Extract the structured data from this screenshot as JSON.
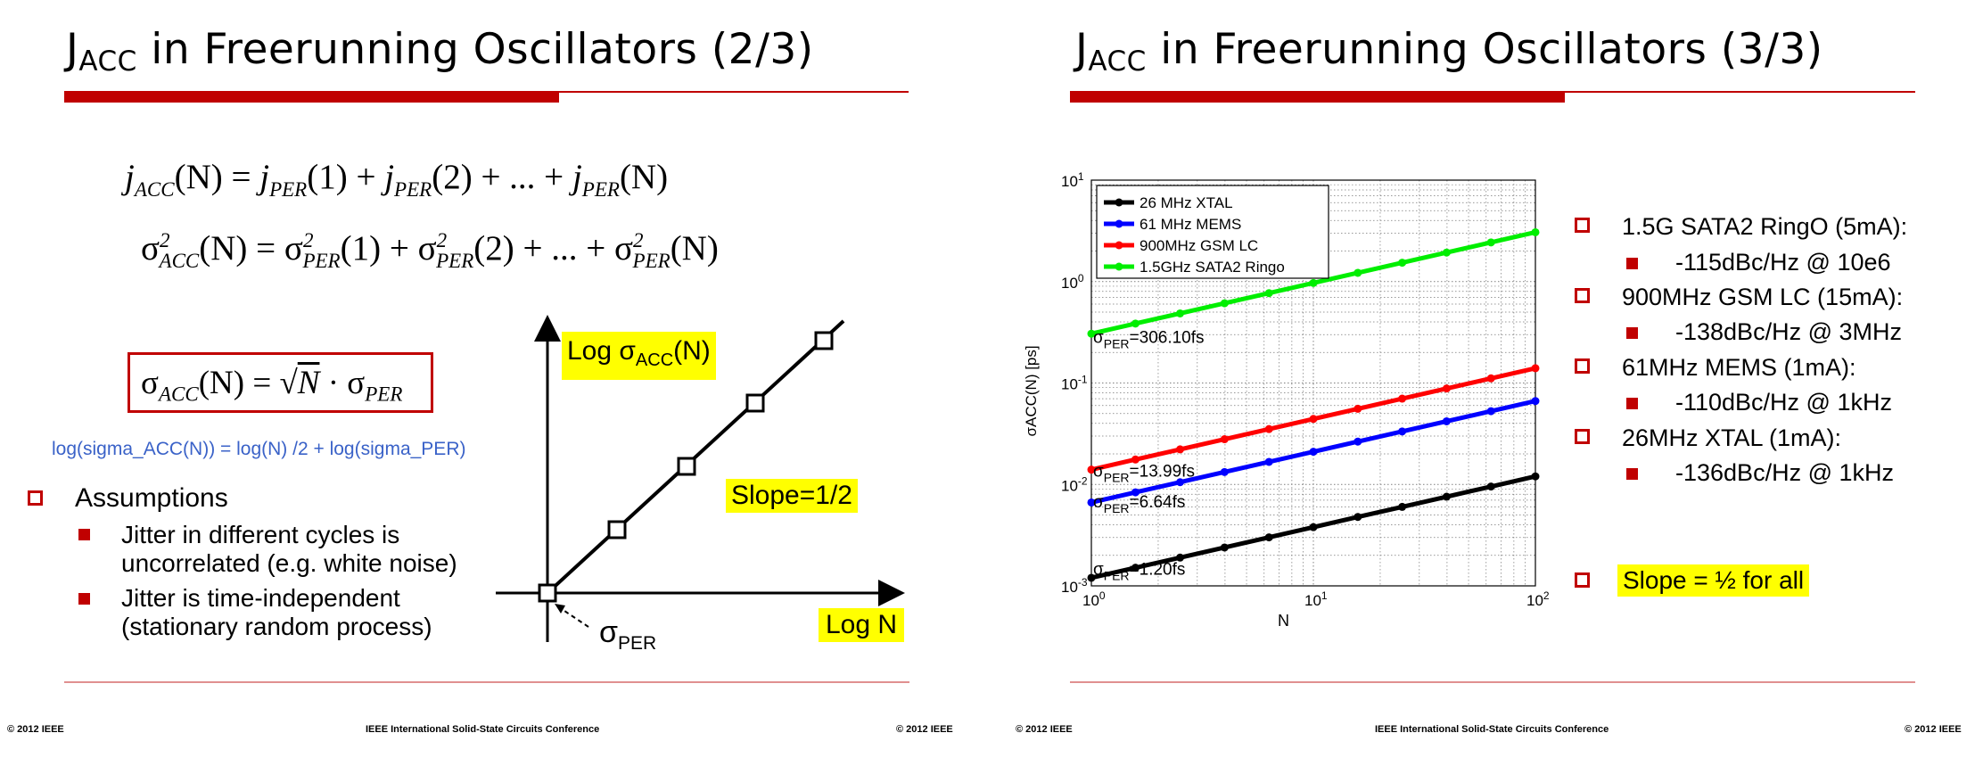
{
  "footer": {
    "copyright": "© 2012 IEEE",
    "conference": "IEEE International Solid-State Circuits Conference"
  },
  "left": {
    "title_main": "J",
    "title_sub": "ACC",
    "title_rest": " in Freerunning Oscillators (2/3)",
    "eq1": {
      "lhs_sym": "j",
      "lhs_sub": "ACC",
      "arg_n": "(N)",
      "equals": " = ",
      "sym": "j",
      "sub": "PER",
      "a1": "(1)",
      "plus": " + ",
      "a2": "(2)",
      "dots": " + ... + ",
      "aN": "(N)"
    },
    "eq2": {
      "sigma": "σ",
      "sup": "2",
      "lhs_sub": "ACC",
      "arg_n": "(N)",
      "equals": " = ",
      "sub": "PER",
      "a1": "(1)",
      "plus": " + ",
      "a2": "(2)",
      "dots": " + ... + ",
      "aN": "(N)"
    },
    "eq3": {
      "sigma": "σ",
      "lhs_sub": "ACC",
      "arg_n": "(N)",
      "equals": " = ",
      "sqrt": "√",
      "n": "N",
      "dot": " · ",
      "sub": "PER"
    },
    "log_formula": "log(sigma_ACC(N)) = log(N) /2 + log(sigma_PER)",
    "assumptions_heading": "Assumptions",
    "assumptions": [
      {
        "line1": "Jitter in different cycles is",
        "line2": "uncorrelated (e.g. white noise)"
      },
      {
        "line1": "Jitter is time-independent",
        "line2": "(stationary random process)"
      }
    ],
    "sketch": {
      "y_label": "Log σ",
      "y_label_sub": "ACC",
      "y_label_tail": "(N)",
      "x_label": "Log N",
      "slope": "Slope=1/2",
      "pointer": "σ",
      "pointer_sub": "PER",
      "markers": [
        0,
        1,
        2,
        3,
        4
      ]
    }
  },
  "right": {
    "title_main": "J",
    "title_sub": "ACC",
    "title_rest": " in Freerunning Oscillators (3/3)",
    "specs": [
      {
        "name": "1.5G SATA2 RingO (5mA):",
        "detail": "-115dBc/Hz @ 10e6"
      },
      {
        "name": "900MHz GSM LC (15mA):",
        "detail": "-138dBc/Hz @ 3MHz"
      },
      {
        "name": "61MHz MEMS (1mA):",
        "detail": "-110dBc/Hz @ 1kHz"
      },
      {
        "name": "26MHz XTAL (1mA):",
        "detail": "-136dBc/Hz @ 1kHz"
      }
    ],
    "slope_note": "Slope = ½ for all"
  },
  "chart_data": {
    "type": "line",
    "title": "",
    "xlabel": "N",
    "ylabel": "σACC(N) [ps]",
    "xscale": "log",
    "yscale": "log",
    "xlim": [
      1,
      100
    ],
    "ylim": [
      0.001,
      10
    ],
    "xticks": [
      "10^0",
      "10^1",
      "10^2"
    ],
    "yticks": [
      "10^-3",
      "10^-2",
      "10^-1",
      "10^0",
      "10^1"
    ],
    "grid": true,
    "legend_position": "top-left",
    "x": [
      1,
      1.58,
      2.51,
      3.98,
      6.31,
      10,
      15.85,
      25.12,
      39.81,
      63.1,
      100
    ],
    "series": [
      {
        "name": "26 MHz XTAL",
        "color": "#000000",
        "sigma_per_fs": "σPER=1.20fs",
        "values": [
          0.0012,
          0.00151,
          0.0019,
          0.00239,
          0.00301,
          0.00379,
          0.00478,
          0.00601,
          0.00757,
          0.00953,
          0.012
        ]
      },
      {
        "name": "61 MHz MEMS",
        "color": "#0000ff",
        "sigma_per_fs": "σPER=6.64fs",
        "values": [
          0.00664,
          0.00836,
          0.01052,
          0.01325,
          0.01668,
          0.021,
          0.02643,
          0.03328,
          0.0419,
          0.05275,
          0.0664
        ]
      },
      {
        "name": "900MHz GSM LC",
        "color": "#ff0000",
        "sigma_per_fs": "σPER=13.99fs",
        "values": [
          0.01399,
          0.01761,
          0.02217,
          0.02791,
          0.03514,
          0.04424,
          0.05569,
          0.07011,
          0.08827,
          0.11113,
          0.1399
        ]
      },
      {
        "name": "1.5GHz SATA2 Ringo",
        "color": "#00ee00",
        "sigma_per_fs": "σPER=306.10fs",
        "values": [
          0.3061,
          0.38535,
          0.48513,
          0.61074,
          0.76887,
          0.96797,
          1.21859,
          1.53412,
          1.93135,
          2.43142,
          3.061
        ]
      }
    ],
    "annotations": [
      {
        "prefix": "σ",
        "sub": "PER",
        "value": "=306.10fs"
      },
      {
        "prefix": "σ",
        "sub": "PER",
        "value": "=13.99fs"
      },
      {
        "prefix": "σ",
        "sub": "PER",
        "value": "=6.64fs"
      },
      {
        "prefix": "σ",
        "sub": "PER",
        "value": "=1.20fs"
      }
    ]
  }
}
